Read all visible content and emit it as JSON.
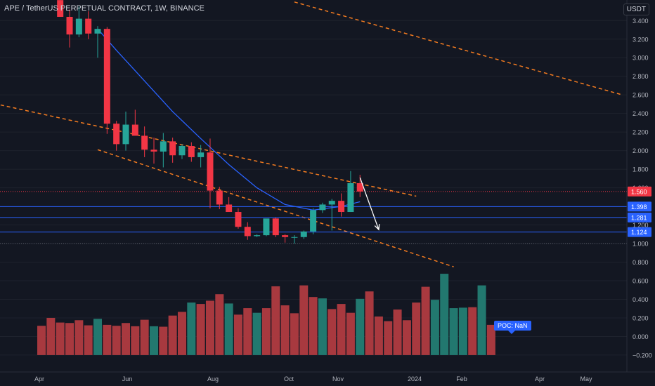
{
  "header": {
    "title": "APE / TetherUS PERPETUAL CONTRACT, 1W, BINANCE",
    "currency": "USDT"
  },
  "poc_label": "POC: NaN",
  "colors": {
    "background": "#131722",
    "up": "#26a69a",
    "down": "#f23645",
    "volume_up": "#22786f",
    "volume_down": "#a8393f",
    "ma": "#2962ff",
    "trendline": "#f57c20",
    "level_line": "#2962ff",
    "arrow": "#ffffff",
    "current_price_label": "#f23645",
    "level_label": "#2962ff"
  },
  "chart_data": {
    "type": "candlestick",
    "x_tick_labels": [
      "Apr",
      "Jun",
      "Aug",
      "Oct",
      "Nov",
      "2024",
      "Feb",
      "Apr",
      "May"
    ],
    "y_tick_labels": [
      "3.400",
      "3.200",
      "3.000",
      "2.800",
      "2.600",
      "2.400",
      "2.200",
      "2.000",
      "1.800",
      "1.600",
      "1.200",
      "1.000",
      "0.800",
      "0.600",
      "0.400",
      "0.200",
      "0.000",
      "−0.200"
    ],
    "y_range": [
      -0.28,
      3.55
    ],
    "candles": [
      {
        "week": "2023-04-10",
        "o": 3.62,
        "h": 3.7,
        "l": 3.44,
        "c": 3.44
      },
      {
        "week": "2023-04-17",
        "o": 3.44,
        "h": 3.52,
        "l": 3.11,
        "c": 3.25
      },
      {
        "week": "2023-04-24",
        "o": 3.25,
        "h": 3.55,
        "l": 3.22,
        "c": 3.42
      },
      {
        "week": "2023-05-01",
        "o": 3.42,
        "h": 3.5,
        "l": 3.2,
        "c": 3.26
      },
      {
        "week": "2023-05-08",
        "o": 3.26,
        "h": 3.34,
        "l": 3.0,
        "c": 3.31
      },
      {
        "week": "2023-05-15",
        "o": 3.31,
        "h": 3.33,
        "l": 2.18,
        "c": 2.29
      },
      {
        "week": "2023-05-22",
        "o": 2.29,
        "h": 2.32,
        "l": 2.0,
        "c": 2.07
      },
      {
        "week": "2023-05-29",
        "o": 2.07,
        "h": 2.42,
        "l": 2.0,
        "c": 2.28
      },
      {
        "week": "2023-06-05",
        "o": 2.28,
        "h": 2.44,
        "l": 2.18,
        "c": 2.16
      },
      {
        "week": "2023-06-12",
        "o": 2.16,
        "h": 2.26,
        "l": 1.93,
        "c": 2.01
      },
      {
        "week": "2023-06-19",
        "o": 2.01,
        "h": 2.14,
        "l": 1.86,
        "c": 1.99
      },
      {
        "week": "2023-06-26",
        "o": 1.99,
        "h": 2.19,
        "l": 1.82,
        "c": 2.1
      },
      {
        "week": "2023-07-03",
        "o": 2.1,
        "h": 2.14,
        "l": 1.87,
        "c": 1.95
      },
      {
        "week": "2023-07-10",
        "o": 1.95,
        "h": 2.07,
        "l": 1.91,
        "c": 2.05
      },
      {
        "week": "2023-07-17",
        "o": 2.05,
        "h": 2.09,
        "l": 1.88,
        "c": 1.93
      },
      {
        "week": "2023-07-24",
        "o": 1.93,
        "h": 2.06,
        "l": 1.82,
        "c": 1.98
      },
      {
        "week": "2023-07-31",
        "o": 1.98,
        "h": 2.13,
        "l": 1.38,
        "c": 1.57
      },
      {
        "week": "2023-08-07",
        "o": 1.57,
        "h": 1.61,
        "l": 1.37,
        "c": 1.42
      },
      {
        "week": "2023-08-14",
        "o": 1.42,
        "h": 1.5,
        "l": 1.36,
        "c": 1.34
      },
      {
        "week": "2023-08-21",
        "o": 1.34,
        "h": 1.38,
        "l": 1.16,
        "c": 1.18
      },
      {
        "week": "2023-08-28",
        "o": 1.18,
        "h": 1.23,
        "l": 1.04,
        "c": 1.08
      },
      {
        "week": "2023-09-04",
        "o": 1.08,
        "h": 1.1,
        "l": 1.07,
        "c": 1.09
      },
      {
        "week": "2023-09-11",
        "o": 1.09,
        "h": 1.24,
        "l": 1.08,
        "c": 1.27
      },
      {
        "week": "2023-09-18",
        "o": 1.27,
        "h": 1.28,
        "l": 1.07,
        "c": 1.09
      },
      {
        "week": "2023-09-25",
        "o": 1.09,
        "h": 1.1,
        "l": 1.01,
        "c": 1.07
      },
      {
        "week": "2023-10-02",
        "o": 1.07,
        "h": 1.09,
        "l": 1.0,
        "c": 1.07
      },
      {
        "week": "2023-10-09",
        "o": 1.07,
        "h": 1.14,
        "l": 1.05,
        "c": 1.13
      },
      {
        "week": "2023-10-16",
        "o": 1.13,
        "h": 1.38,
        "l": 1.1,
        "c": 1.36
      },
      {
        "week": "2023-10-23",
        "o": 1.36,
        "h": 1.44,
        "l": 1.33,
        "c": 1.42
      },
      {
        "week": "2023-10-30",
        "o": 1.42,
        "h": 1.48,
        "l": 1.14,
        "c": 1.46
      },
      {
        "week": "2023-11-06",
        "o": 1.46,
        "h": 1.54,
        "l": 1.29,
        "c": 1.34
      },
      {
        "week": "2023-11-13",
        "o": 1.34,
        "h": 1.78,
        "l": 1.34,
        "c": 1.65
      },
      {
        "week": "2023-11-20",
        "o": 1.65,
        "h": 1.74,
        "l": 1.5,
        "c": 1.56
      }
    ],
    "volume": [
      {
        "week": "2023-03-27",
        "value": 0.115,
        "up": false
      },
      {
        "week": "2023-04-03",
        "value": 0.2,
        "up": false
      },
      {
        "week": "2023-04-10",
        "value": 0.15,
        "up": false
      },
      {
        "week": "2023-04-17",
        "value": 0.145,
        "up": false
      },
      {
        "week": "2023-04-24",
        "value": 0.175,
        "up": false
      },
      {
        "week": "2023-05-01",
        "value": 0.12,
        "up": false
      },
      {
        "week": "2023-05-08",
        "value": 0.19,
        "up": true
      },
      {
        "week": "2023-05-15",
        "value": 0.125,
        "up": false
      },
      {
        "week": "2023-05-22",
        "value": 0.115,
        "up": false
      },
      {
        "week": "2023-05-29",
        "value": 0.145,
        "up": false
      },
      {
        "week": "2023-06-05",
        "value": 0.11,
        "up": false
      },
      {
        "week": "2023-06-12",
        "value": 0.18,
        "up": false
      },
      {
        "week": "2023-06-19",
        "value": 0.11,
        "up": true
      },
      {
        "week": "2023-06-26",
        "value": 0.105,
        "up": false
      },
      {
        "week": "2023-07-03",
        "value": 0.225,
        "up": false
      },
      {
        "week": "2023-07-10",
        "value": 0.265,
        "up": false
      },
      {
        "week": "2023-07-17",
        "value": 0.365,
        "up": true
      },
      {
        "week": "2023-07-24",
        "value": 0.35,
        "up": false
      },
      {
        "week": "2023-07-31",
        "value": 0.385,
        "up": false
      },
      {
        "week": "2023-08-07",
        "value": 0.455,
        "up": false
      },
      {
        "week": "2023-08-14",
        "value": 0.355,
        "up": true
      },
      {
        "week": "2023-08-21",
        "value": 0.235,
        "up": false
      },
      {
        "week": "2023-08-28",
        "value": 0.305,
        "up": false
      },
      {
        "week": "2023-09-04",
        "value": 0.255,
        "up": true
      },
      {
        "week": "2023-09-11",
        "value": 0.305,
        "up": false
      },
      {
        "week": "2023-09-18",
        "value": 0.54,
        "up": false
      },
      {
        "week": "2023-09-25",
        "value": 0.335,
        "up": false
      },
      {
        "week": "2023-10-02",
        "value": 0.25,
        "up": false
      },
      {
        "week": "2023-10-09",
        "value": 0.55,
        "up": false
      },
      {
        "week": "2023-10-16",
        "value": 0.425,
        "up": false
      },
      {
        "week": "2023-10-23",
        "value": 0.41,
        "up": true
      },
      {
        "week": "2023-10-30",
        "value": 0.295,
        "up": false
      },
      {
        "week": "2023-11-06",
        "value": 0.35,
        "up": false
      },
      {
        "week": "2023-11-13",
        "value": 0.255,
        "up": false
      },
      {
        "week": "2023-11-20",
        "value": 0.405,
        "up": true
      },
      {
        "week": "2023-11-27",
        "value": 0.485,
        "up": false
      },
      {
        "week": "2023-12-04",
        "value": 0.215,
        "up": false
      },
      {
        "week": "2023-12-11",
        "value": 0.165,
        "up": false
      },
      {
        "week": "2023-12-18",
        "value": 0.29,
        "up": false
      },
      {
        "week": "2023-12-25",
        "value": 0.175,
        "up": false
      },
      {
        "week": "2024-01-01",
        "value": 0.365,
        "up": false
      },
      {
        "week": "2024-01-08",
        "value": 0.535,
        "up": false
      },
      {
        "week": "2024-01-15",
        "value": 0.395,
        "up": true
      },
      {
        "week": "2024-01-22",
        "value": 0.675,
        "up": true
      },
      {
        "week": "2024-01-29",
        "value": 0.305,
        "up": true
      },
      {
        "week": "2024-02-05",
        "value": 0.31,
        "up": true
      },
      {
        "week": "2024-02-12",
        "value": 0.315,
        "up": false
      },
      {
        "week": "2024-02-19",
        "value": 0.55,
        "up": true
      },
      {
        "week": "2024-02-26",
        "value": 0.125,
        "up": false
      }
    ],
    "moving_average": [
      {
        "week": "2023-05-08",
        "value": 3.31
      },
      {
        "week": "2023-05-22",
        "value": 3.08
      },
      {
        "week": "2023-06-12",
        "value": 2.75
      },
      {
        "week": "2023-07-03",
        "value": 2.42
      },
      {
        "week": "2023-07-24",
        "value": 2.13
      },
      {
        "week": "2023-08-14",
        "value": 1.85
      },
      {
        "week": "2023-09-04",
        "value": 1.6
      },
      {
        "week": "2023-09-25",
        "value": 1.42
      },
      {
        "week": "2023-10-16",
        "value": 1.36
      },
      {
        "week": "2023-11-06",
        "value": 1.4
      },
      {
        "week": "2023-11-20",
        "value": 1.45
      }
    ],
    "trendlines": [
      {
        "from": {
          "week": "2023-02-06",
          "price": 2.55
        },
        "to": {
          "week": "2024-01-01",
          "price": 1.51
        }
      },
      {
        "from": {
          "week": "2023-05-08",
          "price": 2.01
        },
        "to": {
          "week": "2024-01-29",
          "price": 0.75
        }
      },
      {
        "from": {
          "week": "2023-10-02",
          "price": 3.6
        },
        "to": {
          "week": "2024-06-03",
          "price": 2.6
        }
      }
    ],
    "horizontal_levels": [
      {
        "price": 1.398,
        "label": "1.398"
      },
      {
        "price": 1.281,
        "label": "1.281"
      },
      {
        "price": 1.124,
        "label": "1.124"
      }
    ],
    "current_price": {
      "value": 1.56,
      "label": "1.560"
    },
    "projection_arrow": {
      "from": {
        "week": "2023-11-20",
        "price": 1.71
      },
      "to": {
        "week": "2023-12-04",
        "price": 1.15
      }
    }
  }
}
